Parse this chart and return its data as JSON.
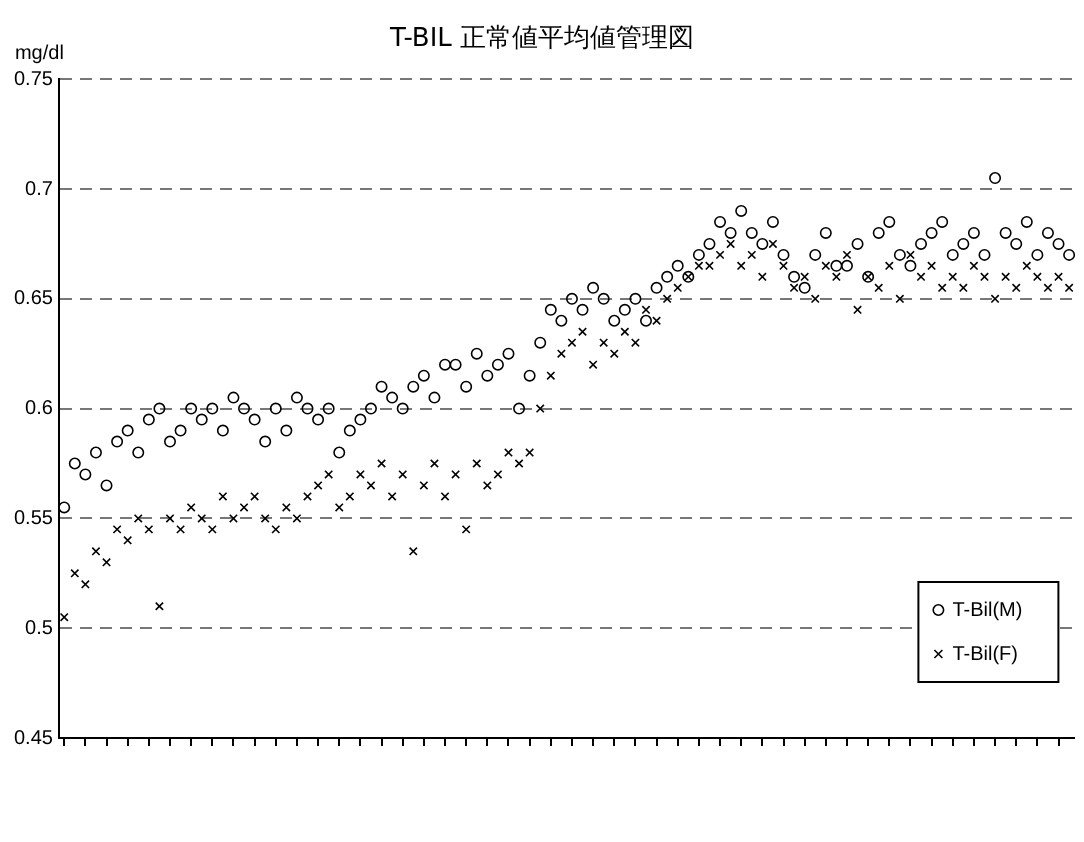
{
  "chart_data": {
    "type": "scatter",
    "title": "T-BIL 正常値平均値管理図",
    "ylabel": "mg/dl",
    "categories": [
      null,
      null,
      null,
      null,
      null,
      null,
      null,
      null,
      null,
      null,
      null,
      null,
      null,
      null,
      null,
      null,
      null,
      null,
      null,
      null,
      null,
      null,
      null,
      null,
      null,
      null,
      null,
      null,
      null,
      null,
      null,
      null,
      null,
      null,
      null,
      null,
      null,
      null,
      null,
      null,
      null,
      null,
      null,
      null,
      null,
      null,
      null,
      null,
      null,
      null,
      null,
      null,
      null,
      null,
      null,
      null,
      null,
      null,
      null,
      null,
      null,
      null,
      null,
      null,
      null,
      null,
      null,
      null,
      null,
      null,
      null,
      null,
      null,
      null,
      null,
      null,
      null,
      null,
      null,
      null,
      null,
      null,
      null,
      null,
      null,
      null,
      null,
      null,
      null,
      null,
      null,
      null,
      null,
      null,
      null,
      null
    ],
    "series": [
      {
        "name": "T-Bil(M)",
        "color": "#000000",
        "marker": "circle",
        "values": [
          0.555,
          0.575,
          0.57,
          0.58,
          0.565,
          0.585,
          0.59,
          0.58,
          0.595,
          0.6,
          0.585,
          0.59,
          0.6,
          0.595,
          0.6,
          0.59,
          0.605,
          0.6,
          0.595,
          0.585,
          0.6,
          0.59,
          0.605,
          0.6,
          0.595,
          0.6,
          0.58,
          0.59,
          0.595,
          0.6,
          0.61,
          0.605,
          0.6,
          0.61,
          0.615,
          0.605,
          0.62,
          0.62,
          0.61,
          0.625,
          0.615,
          0.62,
          0.625,
          0.6,
          0.615,
          0.63,
          0.645,
          0.64,
          0.65,
          0.645,
          0.655,
          0.65,
          0.64,
          0.645,
          0.65,
          0.64,
          0.655,
          0.66,
          0.665,
          0.66,
          0.67,
          0.675,
          0.685,
          0.68,
          0.69,
          0.68,
          0.675,
          0.685,
          0.67,
          0.66,
          0.655,
          0.67,
          0.68,
          0.665,
          0.665,
          0.675,
          0.66,
          0.68,
          0.685,
          0.67,
          0.665,
          0.675,
          0.68,
          0.685,
          0.67,
          0.675,
          0.68,
          0.67,
          0.705,
          0.68,
          0.675,
          0.685,
          0.67,
          0.68,
          0.675,
          0.67
        ]
      },
      {
        "name": "T-Bil(F)",
        "color": "#000000",
        "marker": "cross",
        "values": [
          0.505,
          0.525,
          0.52,
          0.535,
          0.53,
          0.545,
          0.54,
          0.55,
          0.545,
          0.51,
          0.55,
          0.545,
          0.555,
          0.55,
          0.545,
          0.56,
          0.55,
          0.555,
          0.56,
          0.55,
          0.545,
          0.555,
          0.55,
          0.56,
          0.565,
          0.57,
          0.555,
          0.56,
          0.57,
          0.565,
          0.575,
          0.56,
          0.57,
          0.535,
          0.565,
          0.575,
          0.56,
          0.57,
          0.545,
          0.575,
          0.565,
          0.57,
          0.58,
          0.575,
          0.58,
          0.6,
          0.615,
          0.625,
          0.63,
          0.635,
          0.62,
          0.63,
          0.625,
          0.635,
          0.63,
          0.645,
          0.64,
          0.65,
          0.655,
          0.66,
          0.665,
          0.665,
          0.67,
          0.675,
          0.665,
          0.67,
          0.66,
          0.675,
          0.665,
          0.655,
          0.66,
          0.65,
          0.665,
          0.66,
          0.67,
          0.645,
          0.66,
          0.655,
          0.665,
          0.65,
          0.67,
          0.66,
          0.665,
          0.655,
          0.66,
          0.655,
          0.665,
          0.66,
          0.65,
          0.66,
          0.655,
          0.665,
          0.66,
          0.655,
          0.66,
          0.655
        ]
      }
    ],
    "ylim": [
      0.45,
      0.75
    ],
    "yticks": [
      0.45,
      0.5,
      0.55,
      0.6,
      0.65,
      0.7,
      0.75
    ],
    "grid": "y",
    "legend": "bottom right",
    "tick_labels": "y"
  }
}
